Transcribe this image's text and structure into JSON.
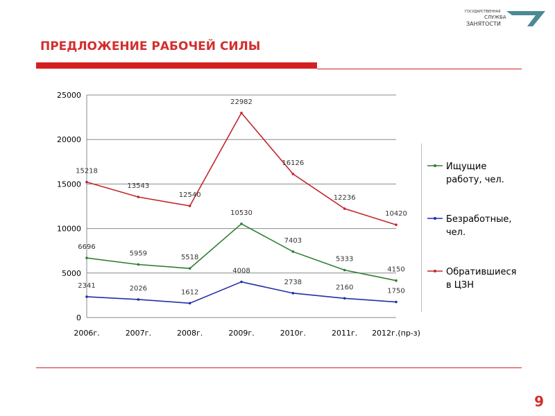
{
  "slide": {
    "logo": [
      "ГОСУДАРСТВЕННАЯ",
      "СЛУЖБА",
      "ЗАНЯТОСТИ"
    ],
    "page_number": "9"
  },
  "chart_data": {
    "type": "line",
    "title": "ПРЕДЛОЖЕНИЕ РАБОЧЕЙ СИЛЫ",
    "categories": [
      "2006г.",
      "2007г.",
      "2008г.",
      "2009г.",
      "2010г.",
      "2011г.",
      "2012г.(пр-з)"
    ],
    "series": [
      {
        "name": "Ищущие работу, чел.",
        "color": "#2e7d32",
        "values": [
          6696,
          5959,
          5518,
          10530,
          7403,
          5333,
          4150
        ]
      },
      {
        "name": "Безработные, чел.",
        "color": "#1f2fa8",
        "values": [
          2341,
          2026,
          1612,
          4008,
          2738,
          2160,
          1750
        ]
      },
      {
        "name": "Обратившиеся в ЦЗН",
        "color": "#c0262c",
        "values": [
          15218,
          13543,
          12540,
          22982,
          16126,
          12236,
          10420
        ]
      }
    ],
    "ylim": [
      0,
      25000
    ],
    "yticks": [
      0,
      5000,
      10000,
      15000,
      20000,
      25000
    ],
    "grid": true,
    "legend": "right"
  }
}
